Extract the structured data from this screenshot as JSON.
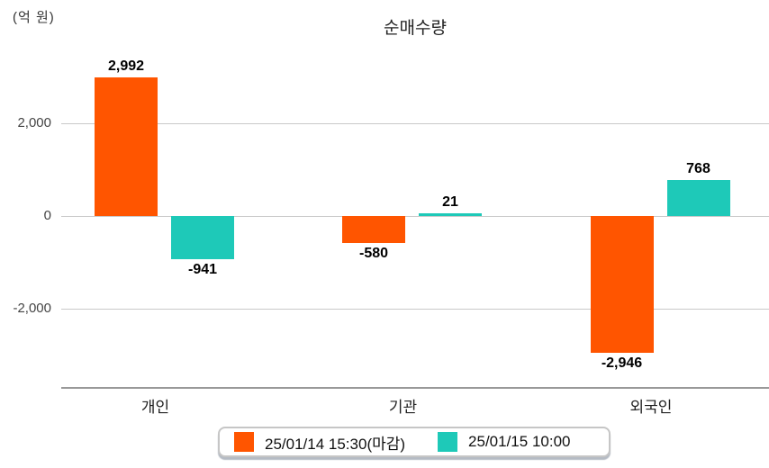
{
  "chart_data": {
    "type": "bar",
    "title": "순매수량",
    "unit_label": "(억 원)",
    "categories": [
      "개인",
      "기관",
      "외국인"
    ],
    "series": [
      {
        "name": "25/01/14 15:30(마감)",
        "color": "#ff5500",
        "values": [
          2992,
          -580,
          -2946
        ],
        "labels": [
          "2,992",
          "-580",
          "-2,946"
        ]
      },
      {
        "name": "25/01/15 10:00",
        "color": "#1ec9b8",
        "values": [
          -941,
          21,
          768
        ],
        "labels": [
          "-941",
          "21",
          "768"
        ]
      }
    ],
    "y_axis": {
      "ticks": [
        {
          "value": 2000,
          "label": "2,000"
        },
        {
          "value": 0,
          "label": "0"
        },
        {
          "value": -2000,
          "label": "-2,000"
        }
      ],
      "ylim": [
        -3700,
        3600
      ]
    },
    "grid": true,
    "legend_position": "bottom"
  }
}
